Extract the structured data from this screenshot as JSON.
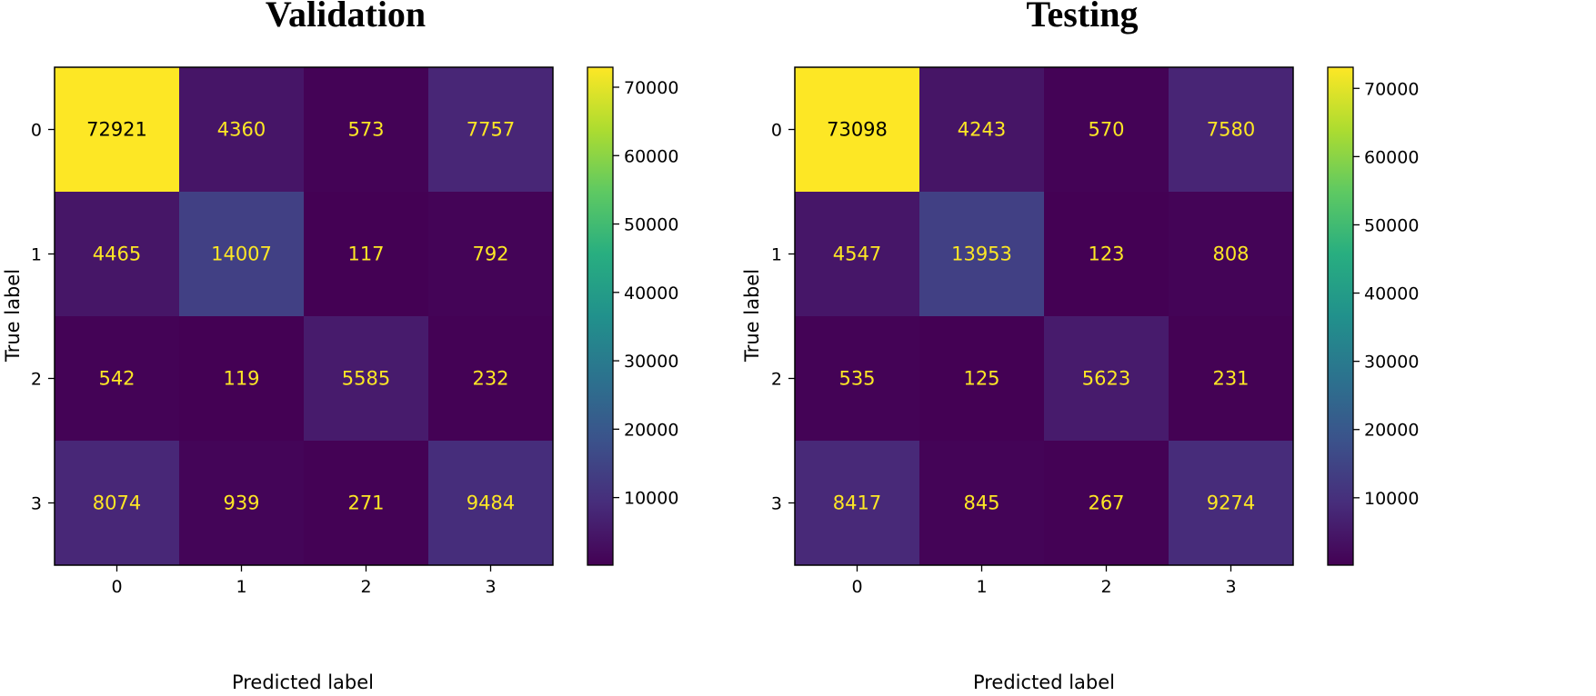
{
  "chart_data": [
    {
      "type": "heatmap",
      "title": "Validation",
      "xlabel": "Predicted label",
      "ylabel": "True label",
      "x_categories": [
        "0",
        "1",
        "2",
        "3"
      ],
      "y_categories": [
        "0",
        "1",
        "2",
        "3"
      ],
      "matrix": [
        [
          72921,
          4360,
          573,
          7757
        ],
        [
          4465,
          14007,
          117,
          792
        ],
        [
          542,
          119,
          5585,
          232
        ],
        [
          8074,
          939,
          271,
          9484
        ]
      ],
      "colormap": "viridis",
      "colorbar_ticks": [
        10000,
        20000,
        30000,
        40000,
        50000,
        60000,
        70000
      ],
      "value_range": [
        117,
        72921
      ],
      "cell_text_color": "#FDE725"
    },
    {
      "type": "heatmap",
      "title": "Testing",
      "xlabel": "Predicted label",
      "ylabel": "True label",
      "x_categories": [
        "0",
        "1",
        "2",
        "3"
      ],
      "y_categories": [
        "0",
        "1",
        "2",
        "3"
      ],
      "matrix": [
        [
          73098,
          4243,
          570,
          7580
        ],
        [
          4547,
          13953,
          123,
          808
        ],
        [
          535,
          125,
          5623,
          231
        ],
        [
          8417,
          845,
          267,
          9274
        ]
      ],
      "colormap": "viridis",
      "colorbar_ticks": [
        10000,
        20000,
        30000,
        40000,
        50000,
        60000,
        70000
      ],
      "value_range": [
        123,
        73098
      ],
      "cell_text_color": "#FDE725"
    }
  ]
}
